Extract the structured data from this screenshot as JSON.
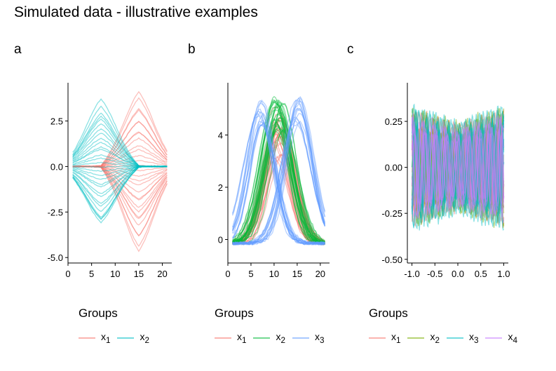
{
  "title": "Simulated data - illustrative examples",
  "colors": {
    "x1_2": "#F8766D",
    "x2_2": "#00BFC4",
    "x1_3": "#F8766D",
    "x2_3": "#00BA38",
    "x3_3": "#619CFF",
    "x1_4": "#F8766D",
    "x2_4": "#7CAE00",
    "x3_4": "#00BFC4",
    "x4_4": "#C77CFF"
  },
  "chart_data": [
    {
      "panel": "a",
      "type": "line",
      "xlim": [
        0,
        22
      ],
      "ylim": [
        -5.3,
        4.6
      ],
      "xticks": [
        0,
        5,
        10,
        15,
        20
      ],
      "xtick_labels": [
        "0",
        "5",
        "10",
        "15",
        "20"
      ],
      "yticks": [
        2.5,
        0,
        -2.5,
        -5
      ],
      "ytick_labels": [
        "2.5",
        "0.0",
        "-2.5",
        "-5.0"
      ],
      "x_range": [
        1,
        21
      ],
      "series": [
        {
          "name": "x1",
          "shape": "peak-15",
          "amplitude_range": [
            -4.9,
            4.1
          ],
          "n_curves": 30
        },
        {
          "name": "x2",
          "shape": "peak-7",
          "amplitude_range": [
            -3.6,
            3.8
          ],
          "n_curves": 30
        }
      ],
      "legend": {
        "title": "Groups",
        "entries": [
          "x",
          "x"
        ],
        "subscripts": [
          "1",
          "2"
        ]
      }
    },
    {
      "panel": "b",
      "type": "line",
      "xlim": [
        0,
        22
      ],
      "ylim": [
        -0.9,
        6
      ],
      "xticks": [
        0,
        5,
        10,
        15,
        20
      ],
      "xtick_labels": [
        "0",
        "5",
        "10",
        "15",
        "20"
      ],
      "yticks": [
        0,
        2,
        4
      ],
      "ytick_labels": [
        "0",
        "2",
        "4"
      ],
      "x_range": [
        1,
        21
      ],
      "series": [
        {
          "name": "x1",
          "shape": "bump-11",
          "peak_range": [
            3.2,
            5.4
          ],
          "n_curves": 30
        },
        {
          "name": "x2",
          "shape": "bump-11",
          "peak_range": [
            4.2,
            5.6
          ],
          "n_curves": 30
        },
        {
          "name": "x3",
          "shape": "two-bumps-7-15",
          "peak_range": [
            4.5,
            5.6
          ],
          "n_curves": 30
        }
      ],
      "legend": {
        "title": "Groups",
        "entries": [
          "x",
          "x",
          "x"
        ],
        "subscripts": [
          "1",
          "2",
          "3"
        ]
      }
    },
    {
      "panel": "c",
      "type": "line",
      "xlim": [
        -1.1,
        1.1
      ],
      "ylim": [
        -0.52,
        0.46
      ],
      "xticks": [
        -1,
        -0.5,
        0,
        0.5,
        1
      ],
      "xtick_labels": [
        "-1.0",
        "-0.5",
        "0.0",
        "0.5",
        "1.0"
      ],
      "yticks": [
        0.25,
        0,
        -0.25,
        -0.5
      ],
      "ytick_labels": [
        "0.25",
        "0.00",
        "-0.25",
        "-0.50"
      ],
      "x_range": [
        -1,
        1
      ],
      "series": [
        {
          "name": "x1",
          "shape": "oscillation",
          "amplitude": 0.3,
          "n_curves": 12
        },
        {
          "name": "x2",
          "shape": "oscillation",
          "amplitude": 0.32,
          "n_curves": 12
        },
        {
          "name": "x3",
          "shape": "oscillation",
          "amplitude": 0.32,
          "n_curves": 12
        },
        {
          "name": "x4",
          "shape": "oscillation",
          "amplitude": 0.28,
          "n_curves": 12
        }
      ],
      "legend": {
        "title": "Groups",
        "entries": [
          "x",
          "x",
          "x",
          "x"
        ],
        "subscripts": [
          "1",
          "2",
          "3",
          "4"
        ]
      }
    }
  ]
}
